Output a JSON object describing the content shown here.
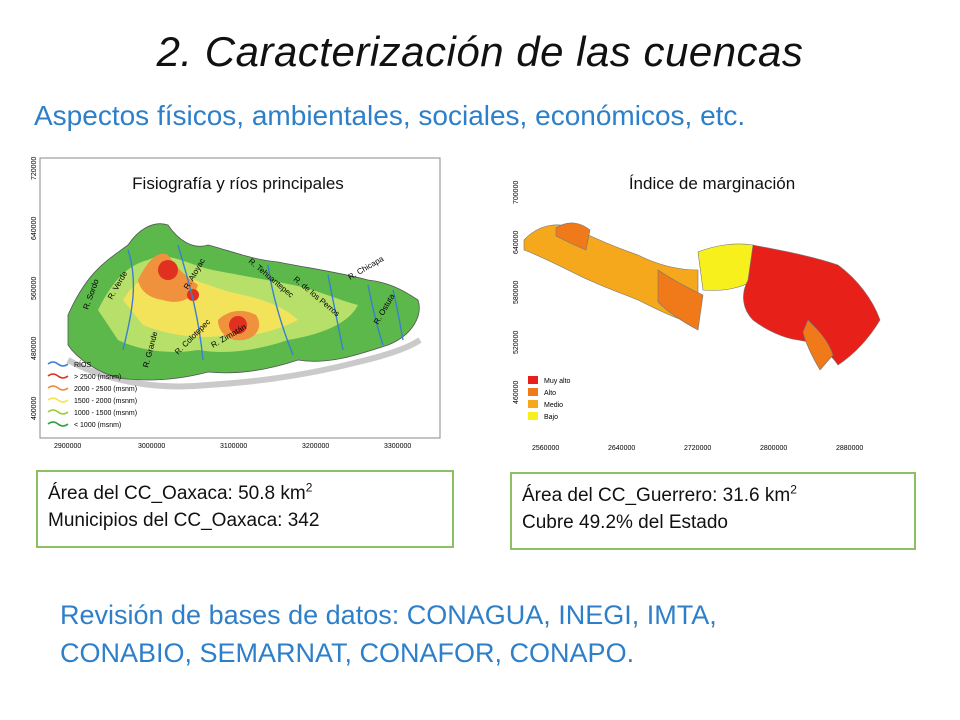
{
  "slide": {
    "title": "2. Caracterización de las cuencas",
    "subtitle": "Aspectos físicos, ambientales, sociales, económicos, etc."
  },
  "map_left": {
    "caption": "Fisiografía y ríos principales",
    "y_ticks": [
      "720000",
      "640000",
      "560000",
      "480000",
      "400000"
    ],
    "x_ticks": [
      "2900000",
      "3000000",
      "3100000",
      "3200000",
      "3300000"
    ],
    "legend": [
      "RÍOS",
      "> 2500 (msnm)",
      "2000 - 2500 (msnm)",
      "1500 - 2000 (msnm)",
      "1000 - 1500 (msnm)",
      "< 1000 (msnm)"
    ],
    "legend_colors": [
      "#3a7fd0",
      "#e03020",
      "#f08a3a",
      "#f5e44a",
      "#9acd32",
      "#2e9e3a"
    ],
    "river_labels": [
      "R. Verde",
      "R. Atoyac",
      "R. Tehuantepec",
      "R. de los Perros",
      "R. Chicapa",
      "R. Ostuta",
      "R. Grande",
      "R. Colotepec",
      "R. Zimatán",
      "R. Sordo"
    ]
  },
  "map_right": {
    "caption": "Índice de marginación",
    "y_ticks": [
      "700000",
      "640000",
      "580000",
      "520000",
      "460000"
    ],
    "x_ticks": [
      "2560000",
      "2640000",
      "2720000",
      "2800000",
      "2880000"
    ],
    "legend": [
      "Muy alto",
      "Alto",
      "Medio",
      "Bajo"
    ],
    "legend_colors": [
      "#e8201a",
      "#f07a1a",
      "#f5a81c",
      "#f8f01c"
    ]
  },
  "box_left": {
    "line1": "Área del CC_Oaxaca:  50.8 km",
    "line1_sup": "2",
    "line2": "Municipios del CC_Oaxaca: 342"
  },
  "box_right": {
    "line1": "Área del CC_Guerrero: 31.6 km",
    "line1_sup": "2",
    "line2": "Cubre 49.2% del Estado"
  },
  "bottom": {
    "line1": "Revisión de bases de datos: CONAGUA, INEGI, IMTA,",
    "line2": "CONABIO, SEMARNAT, CONAFOR, CONAPO."
  }
}
